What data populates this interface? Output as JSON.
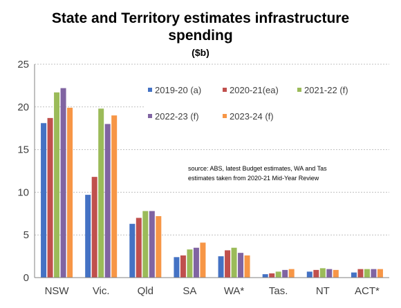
{
  "chart_data": {
    "type": "bar",
    "title_line1": "State and Territory estimates infrastructure",
    "title_line2": "spending",
    "subtitle": "($b)",
    "categories": [
      "NSW",
      "Vic.",
      "Qld",
      "SA",
      "WA*",
      "Tas.",
      "NT",
      "ACT*"
    ],
    "series": [
      {
        "name": "2019-20 (a)",
        "color": "#4472C4",
        "values": [
          18.1,
          9.7,
          6.3,
          2.4,
          2.5,
          0.4,
          0.7,
          0.6
        ]
      },
      {
        "name": "2020-21(ea)",
        "color": "#C0504D",
        "values": [
          18.7,
          11.8,
          7.0,
          2.6,
          3.2,
          0.5,
          0.9,
          1.0
        ]
      },
      {
        "name": "2021-22 (f)",
        "color": "#9BBB59",
        "values": [
          21.7,
          19.8,
          7.8,
          3.3,
          3.5,
          0.7,
          1.1,
          1.0
        ]
      },
      {
        "name": "2022-23 (f)",
        "color": "#8064A2",
        "values": [
          22.2,
          18.0,
          7.8,
          3.5,
          2.9,
          0.9,
          1.0,
          1.0
        ]
      },
      {
        "name": "2023-24 (f)",
        "color": "#F79646",
        "values": [
          19.9,
          19.0,
          7.2,
          4.1,
          2.6,
          1.0,
          0.9,
          1.0
        ]
      }
    ],
    "ylim": [
      0,
      25
    ],
    "yticks": [
      0,
      5,
      10,
      15,
      20,
      25
    ],
    "grid": true,
    "legend_position": "top-right",
    "source_line1": "source:  ABS, latest Budget  estimates,  WA and Tas",
    "source_line2": "estimates taken  from 2020-21  Mid-Year Review"
  }
}
